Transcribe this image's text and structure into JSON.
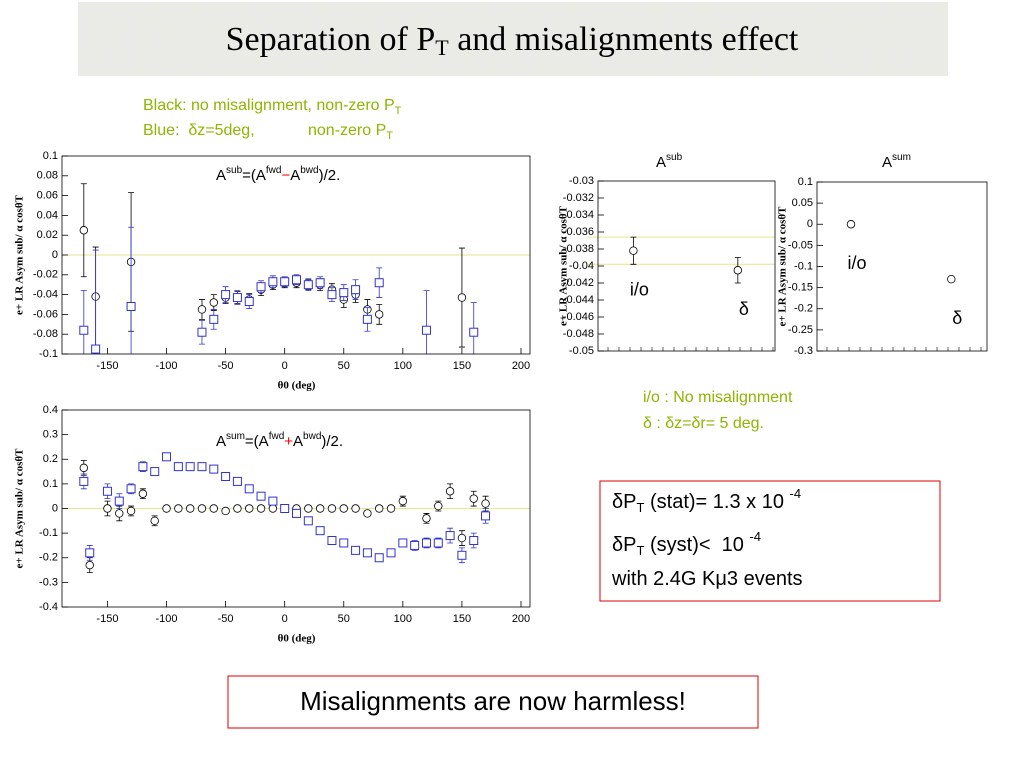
{
  "title": [
    "Separation of P",
    "T",
    " and misalignments effect"
  ],
  "legend_lines": [
    [
      "Black: no misalignment, non-zero P",
      "T"
    ],
    [
      "Blue:  δz=5deg,            non-zero P",
      "T"
    ]
  ],
  "notes": [
    "i/o : No misalignment",
    "δ : δz=δr= 5 deg."
  ],
  "result_box": [
    [
      "δP",
      "T",
      " (stat)= 1.3 x 10 ",
      "-4"
    ],
    [
      "δP",
      "T",
      " (syst)<  10 ",
      "-4"
    ],
    [
      "with 2.4G Kμ3 events"
    ]
  ],
  "conclusion": "Misalignments are now harmless!",
  "chart_data": [
    {
      "type": "scatter",
      "annotation": [
        "A",
        "sub",
        "=(A",
        "fwd",
        "−",
        "A",
        "bwd",
        ")/2."
      ],
      "xlabel": "θ0 (deg)",
      "ylabel": "e+ LR Asym sub/ α cosθT",
      "xlim": [
        -180,
        200
      ],
      "xticks": [
        -150,
        -100,
        -50,
        0,
        50,
        100,
        150,
        200
      ],
      "ylim": [
        -0.1,
        0.1
      ],
      "yticks": [
        0.1,
        0.08,
        0.06,
        0.04,
        0.02,
        0,
        -0.02,
        -0.04,
        -0.06,
        -0.08,
        -0.1
      ],
      "hlines": [
        0
      ],
      "series": [
        {
          "color": "#000000",
          "marker": "circle",
          "x": [
            -170,
            -160,
            -130,
            -70,
            -60,
            -50,
            -40,
            -30,
            -20,
            -10,
            0,
            10,
            20,
            30,
            40,
            50,
            60,
            70,
            80,
            150
          ],
          "values": [
            0.025,
            -0.042,
            -0.007,
            -0.055,
            -0.048,
            -0.043,
            -0.043,
            -0.045,
            -0.035,
            -0.03,
            -0.028,
            -0.028,
            -0.03,
            -0.03,
            -0.035,
            -0.045,
            -0.04,
            -0.055,
            -0.06,
            -0.043
          ],
          "errors": [
            0.047,
            0.05,
            0.07,
            0.01,
            0.008,
            0.006,
            0.006,
            0.006,
            0.006,
            0.005,
            0.005,
            0.005,
            0.005,
            0.006,
            0.006,
            0.008,
            0.008,
            0.01,
            0.01,
            0.05
          ]
        },
        {
          "color": "#3333cc",
          "marker": "square",
          "x": [
            -170,
            -160,
            -130,
            -70,
            -60,
            -50,
            -40,
            -30,
            -20,
            -10,
            0,
            10,
            20,
            30,
            40,
            50,
            60,
            70,
            80,
            120,
            160
          ],
          "values": [
            -0.076,
            -0.095,
            -0.052,
            -0.078,
            -0.065,
            -0.04,
            -0.043,
            -0.047,
            -0.032,
            -0.027,
            -0.027,
            -0.025,
            -0.03,
            -0.028,
            -0.04,
            -0.038,
            -0.035,
            -0.065,
            -0.028,
            -0.076,
            -0.078
          ],
          "errors": [
            0.04,
            0.1,
            0.08,
            0.012,
            0.01,
            0.008,
            0.007,
            0.007,
            0.006,
            0.006,
            0.005,
            0.005,
            0.006,
            0.006,
            0.007,
            0.008,
            0.01,
            0.012,
            0.015,
            0.04,
            0.03
          ]
        }
      ]
    },
    {
      "type": "scatter",
      "annotation": [
        "A",
        "sum",
        "=(A",
        "fwd",
        "+",
        "A",
        "bwd",
        ")/2."
      ],
      "xlabel": "θ0 (deg)",
      "ylabel": "e+ LR Asym sub/ α cosθT",
      "xlim": [
        -180,
        200
      ],
      "xticks": [
        -150,
        -100,
        -50,
        0,
        50,
        100,
        150,
        200
      ],
      "ylim": [
        -0.4,
        0.4
      ],
      "yticks": [
        0.4,
        0.3,
        0.2,
        0.1,
        0,
        -0.1,
        -0.2,
        -0.3,
        -0.4
      ],
      "hlines": [
        0
      ],
      "series": [
        {
          "color": "#000000",
          "marker": "circle",
          "x": [
            -170,
            -165,
            -150,
            -140,
            -130,
            -120,
            -110,
            -100,
            -90,
            -80,
            -70,
            -60,
            -50,
            -40,
            -30,
            -20,
            -10,
            0,
            10,
            20,
            30,
            40,
            50,
            60,
            70,
            80,
            90,
            100,
            120,
            130,
            140,
            150,
            160,
            170
          ],
          "values": [
            0.165,
            -0.23,
            0,
            -0.02,
            -0.01,
            0.06,
            -0.05,
            0,
            0,
            0,
            0,
            0,
            -0.01,
            0,
            0,
            0,
            0,
            0,
            0,
            0,
            0,
            0,
            0,
            0,
            -0.02,
            0,
            0,
            0.03,
            -0.04,
            0.01,
            0.07,
            -0.12,
            0.04,
            0.02
          ],
          "errors": [
            0.03,
            0.03,
            0.03,
            0.03,
            0.02,
            0.02,
            0.02,
            0.01,
            0.01,
            0.01,
            0.01,
            0.01,
            0.01,
            0.01,
            0.01,
            0.01,
            0.01,
            0.01,
            0.01,
            0.01,
            0.01,
            0.01,
            0.01,
            0.01,
            0.01,
            0.01,
            0.01,
            0.02,
            0.02,
            0.02,
            0.03,
            0.03,
            0.03,
            0.03
          ]
        },
        {
          "color": "#3333cc",
          "marker": "square",
          "x": [
            -170,
            -165,
            -150,
            -140,
            -130,
            -120,
            -110,
            -100,
            -90,
            -80,
            -70,
            -60,
            -50,
            -40,
            -30,
            -20,
            -10,
            0,
            10,
            20,
            30,
            40,
            50,
            60,
            70,
            80,
            90,
            100,
            110,
            120,
            130,
            140,
            150,
            160,
            170
          ],
          "values": [
            0.11,
            -0.18,
            0.07,
            0.03,
            0.08,
            0.17,
            0.15,
            0.21,
            0.17,
            0.17,
            0.17,
            0.16,
            0.13,
            0.11,
            0.08,
            0.05,
            0.03,
            0,
            -0.02,
            -0.05,
            -0.09,
            -0.13,
            -0.14,
            -0.17,
            -0.18,
            -0.2,
            -0.18,
            -0.14,
            -0.15,
            -0.14,
            -0.14,
            -0.11,
            -0.19,
            -0.13,
            -0.03
          ],
          "errors": [
            0.03,
            0.03,
            0.03,
            0.03,
            0.02,
            0.02,
            0.01,
            0.01,
            0.01,
            0.01,
            0.01,
            0.01,
            0.01,
            0.01,
            0.01,
            0.01,
            0.01,
            0.01,
            0.01,
            0.01,
            0.01,
            0.01,
            0.01,
            0.01,
            0.01,
            0.01,
            0.01,
            0.01,
            0.02,
            0.02,
            0.02,
            0.03,
            0.03,
            0.03,
            0.03
          ]
        }
      ]
    },
    {
      "type": "category",
      "annotation": [
        "A",
        "sub"
      ],
      "ylabel": "e+ LR Asym sub/ α cosθT",
      "categories": [
        "i/o",
        "δ"
      ],
      "ylim": [
        -0.05,
        -0.03
      ],
      "yticks": [
        -0.03,
        -0.032,
        -0.034,
        -0.036,
        -0.038,
        -0.04,
        -0.042,
        -0.044,
        -0.046,
        -0.048,
        -0.05
      ],
      "hlines": [
        -0.0366,
        -0.0398
      ],
      "series": [
        {
          "color": "#000000",
          "marker": "circle",
          "values": [
            -0.0382,
            -0.0405
          ],
          "errors": [
            0.0016,
            0.0015
          ]
        }
      ]
    },
    {
      "type": "category",
      "annotation": [
        "A",
        "sum"
      ],
      "ylabel": "e+ LR Asym sub/ α cosθT",
      "categories": [
        "i/o",
        "δ"
      ],
      "ylim": [
        -0.3,
        0.1
      ],
      "yticks": [
        0.1,
        0.05,
        0,
        -0.05,
        -0.1,
        -0.15,
        -0.2,
        -0.25,
        -0.3
      ],
      "series": [
        {
          "color": "#000000",
          "marker": "circle",
          "values": [
            0,
            -0.13
          ]
        }
      ]
    }
  ]
}
